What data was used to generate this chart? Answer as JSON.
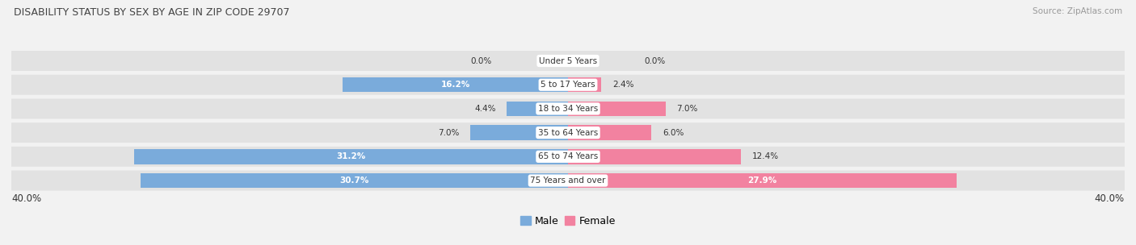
{
  "title": "DISABILITY STATUS BY SEX BY AGE IN ZIP CODE 29707",
  "source": "Source: ZipAtlas.com",
  "categories": [
    "Under 5 Years",
    "5 to 17 Years",
    "18 to 34 Years",
    "35 to 64 Years",
    "65 to 74 Years",
    "75 Years and over"
  ],
  "male_values": [
    0.0,
    16.2,
    4.4,
    7.0,
    31.2,
    30.7
  ],
  "female_values": [
    0.0,
    2.4,
    7.0,
    6.0,
    12.4,
    27.9
  ],
  "male_color": "#7aabdb",
  "female_color": "#f282a0",
  "male_label": "Male",
  "female_label": "Female",
  "axis_max": 40.0,
  "bg_color": "#f2f2f2",
  "bar_bg_color": "#e2e2e2",
  "title_color": "#444444",
  "source_color": "#999999",
  "label_color": "#333333",
  "bar_height": 0.62,
  "fig_width": 14.06,
  "fig_height": 3.04,
  "row_gap_color": "#f2f2f2"
}
